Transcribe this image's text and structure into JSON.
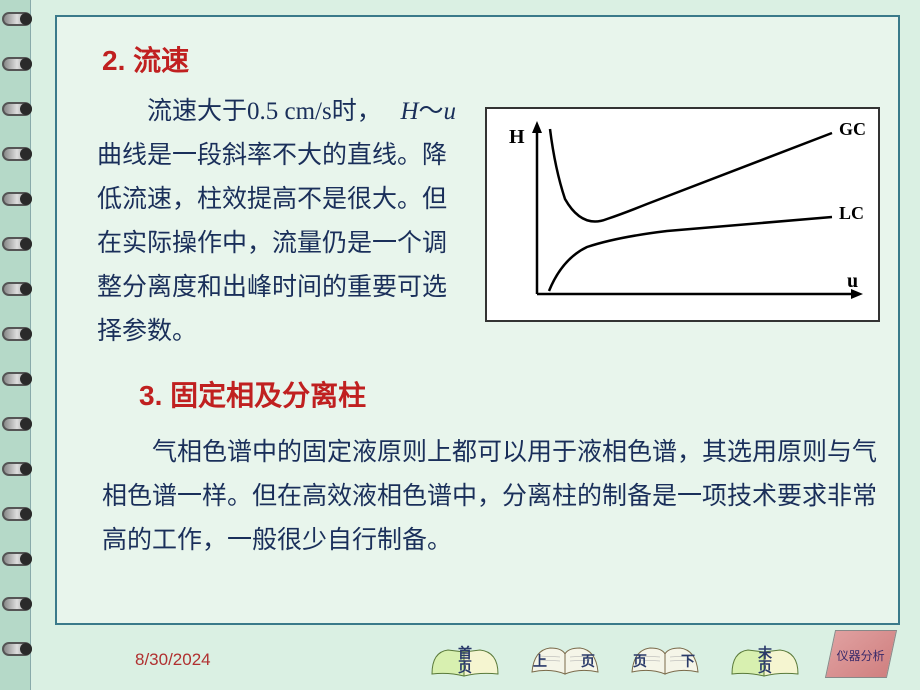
{
  "headings": {
    "h2": "2. 流速",
    "h3": "3. 固定相及分离柱"
  },
  "paragraphs": {
    "p1_part1": "　　流速大于0.5 cm/s时，",
    "p1_var1": "H",
    "p1_tilde": "～",
    "p1_var2": "u",
    "p1_part2": "曲线是一段斜率不大的直线。降低流速，柱效提高不是很大。但在实际操作中，流量仍是一个调整分离度和出峰时间的重要可选择参数。",
    "p2": "气相色谱中的固定液原则上都可以用于液相色谱，其选用原则与气相色谱一样。但在高效液相色谱中，分离柱的制备是一项技术要求非常高的工作，一般很少自行制备。"
  },
  "chart": {
    "y_axis_label": "H",
    "x_axis_label": "u",
    "series": [
      {
        "label": "GC",
        "type": "curve_up"
      },
      {
        "label": "LC",
        "type": "curve_flat"
      }
    ],
    "colors": {
      "background": "#ffffff",
      "border": "#333333",
      "line": "#000000",
      "text": "#000000"
    },
    "line_width": 2.5,
    "font_family": "Times New Roman",
    "font_weight": "bold",
    "font_size": 18
  },
  "footer": {
    "date": "8/30/2024"
  },
  "nav": {
    "first": {
      "top": "首",
      "bottom": "页"
    },
    "prev": {
      "left": "上",
      "right": "页"
    },
    "next": {
      "left": "页",
      "right": "下"
    },
    "last": {
      "top": "末",
      "bottom": "页"
    },
    "analyzer": "仪器分析"
  },
  "styling": {
    "page_bg": "#daf0e3",
    "content_bg": "#e8f5ec",
    "outer_bg": "#b5d9c8",
    "frame_border": "#3a7a8a",
    "heading_color": "#c02020",
    "body_color": "#1a2f5a",
    "date_color": "#b03030",
    "heading_fontsize": 28,
    "body_fontsize": 25,
    "body_lineheight": 44
  },
  "binding": {
    "ring_count": 15,
    "ring_spacing": 45,
    "ring_start": 12
  }
}
